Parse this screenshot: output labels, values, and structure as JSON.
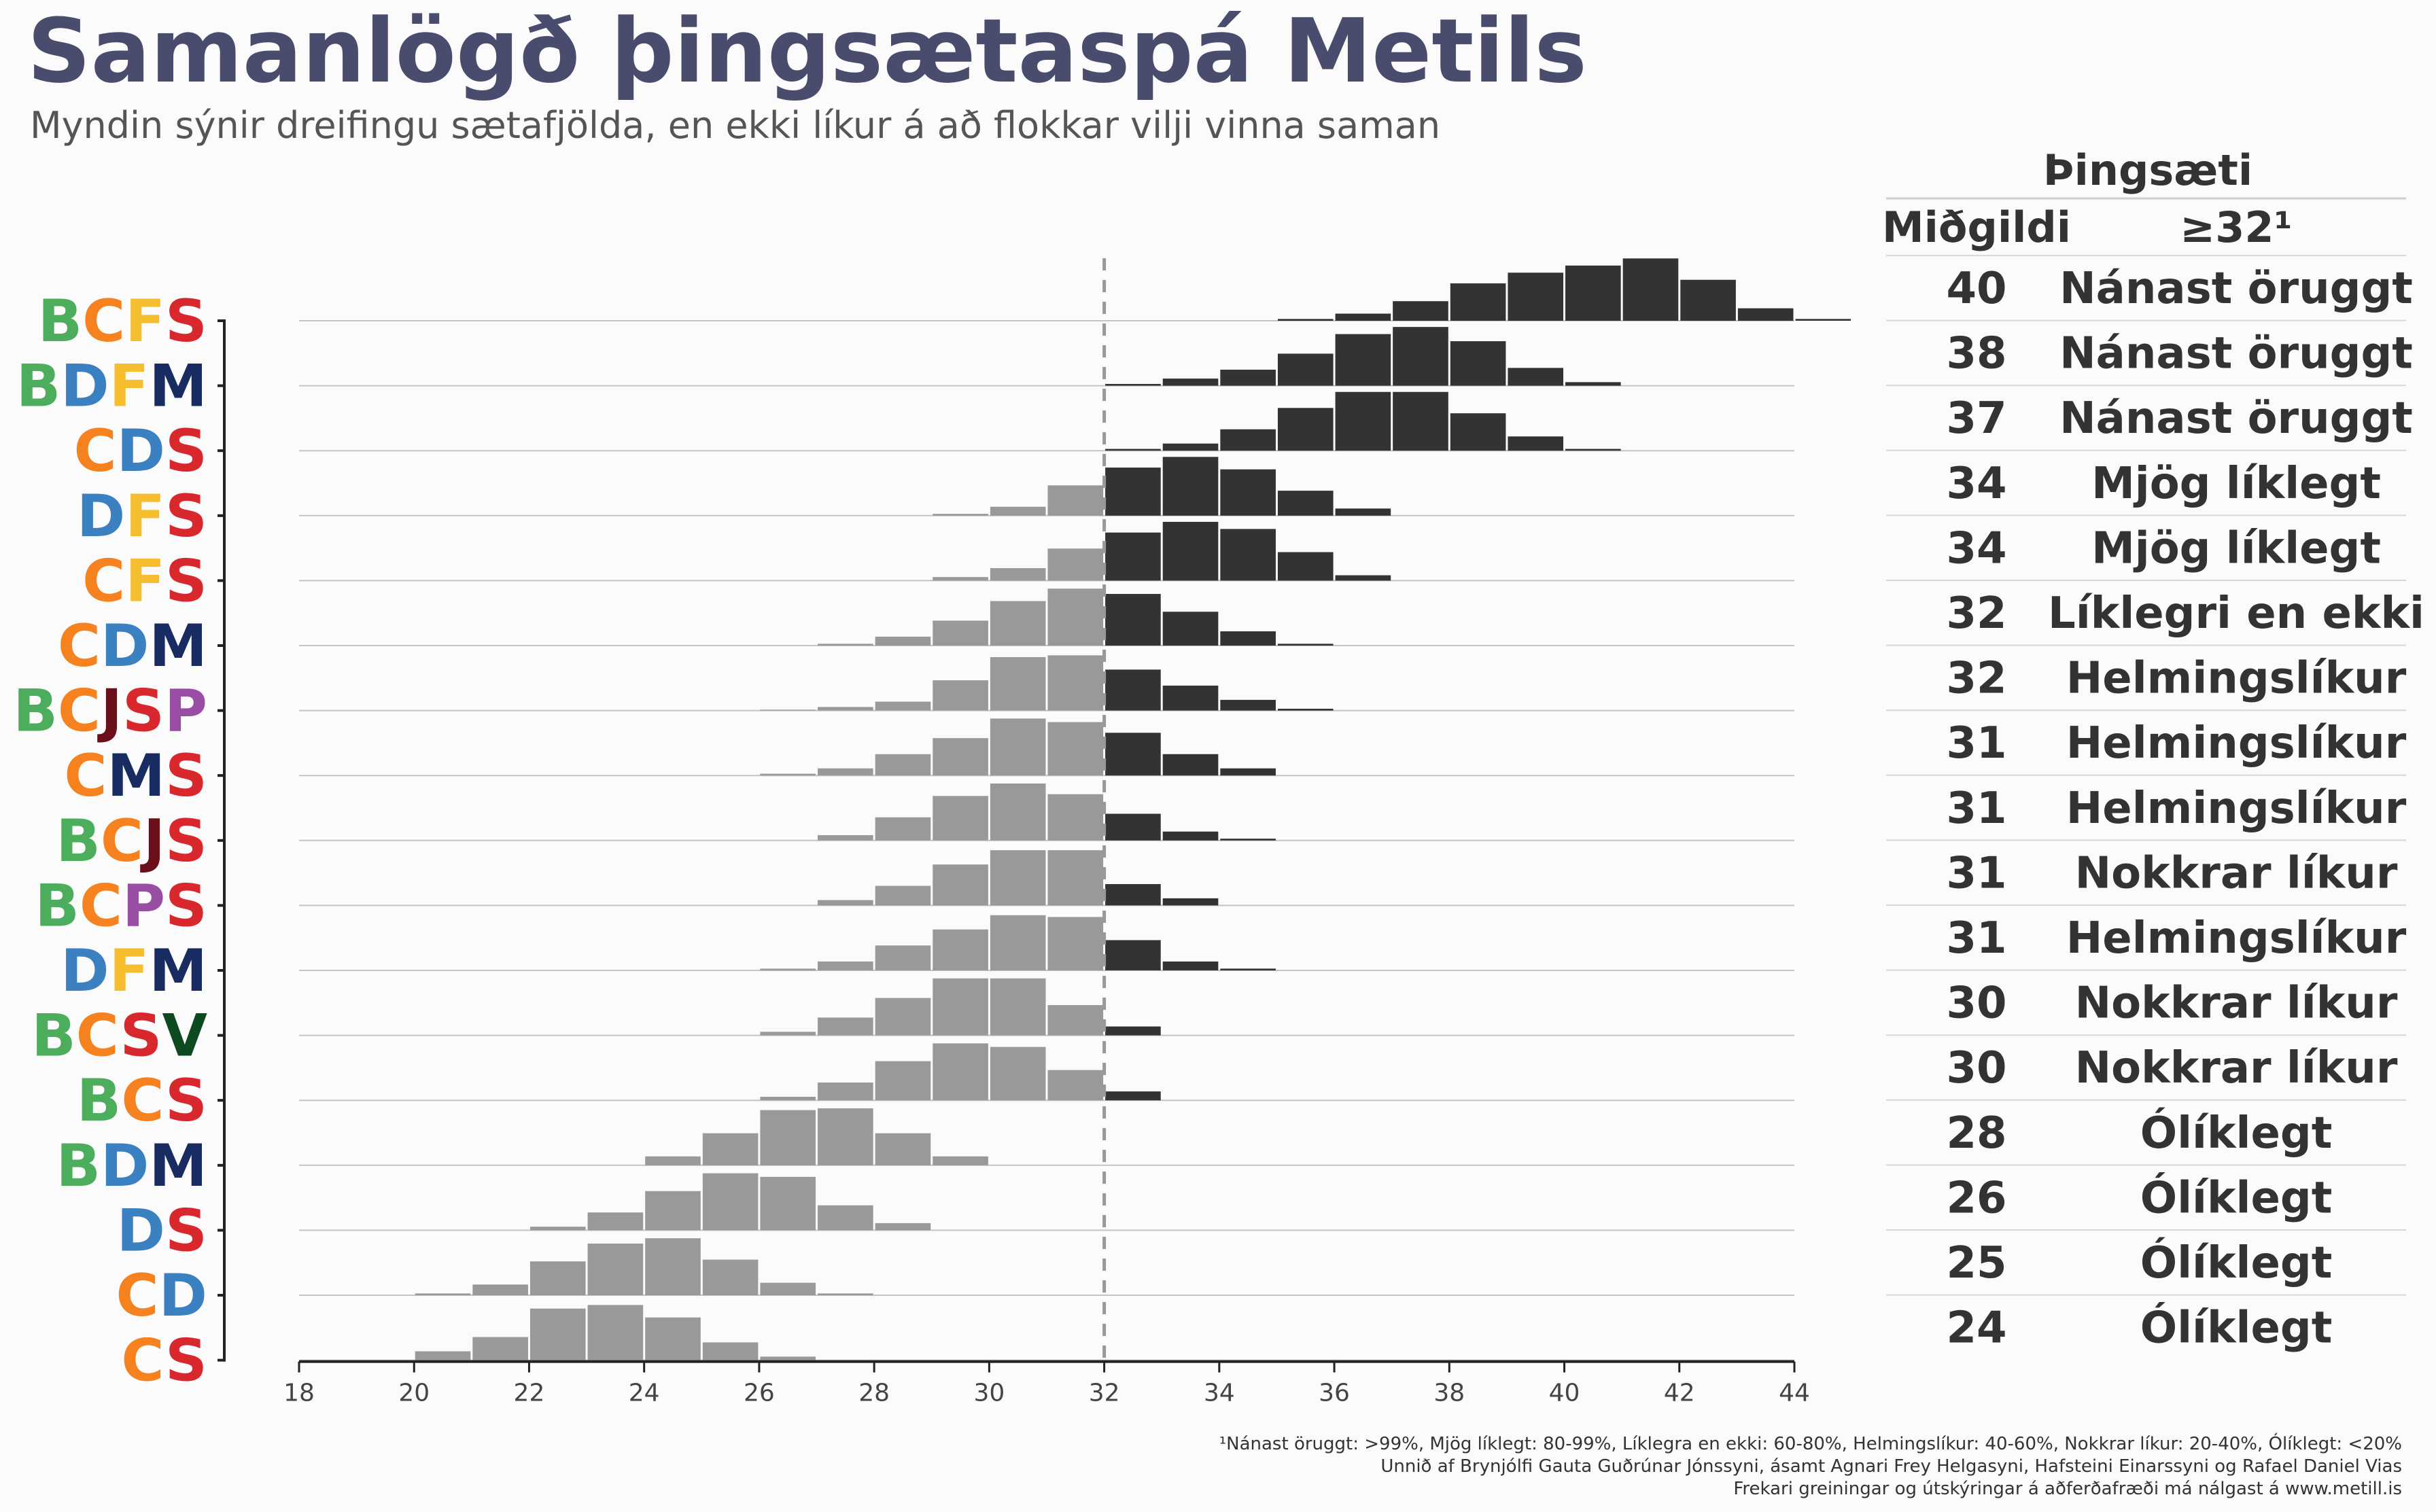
{
  "title": "Samanlögð þingsætaspá Metils",
  "subtitle": "Myndin sýnir dreifingu sætafjölda, en ekki líkur á að flokkar vilji vinna saman",
  "footnotes": [
    "¹Nánast öruggt: >99%, Mjög líklegt: 80-99%, Líklegra en ekki: 60-80%, Helmingslíkur: 40-60%, Nokkrar líkur: 20-40%, Ólíklegt: <20%",
    "Unnið af Brynjólfi Gauta Guðrúnar Jónssyni, ásamt Agnari Frey Helgasyni, Hafsteini Einarssyni og Rafael Daniel Vias",
    "Frekari greiningar og útskýringar á aðferðafræði má nálgast á www.metill.is"
  ],
  "table": {
    "group_header": "Þingsæti",
    "col_median": "Miðgildi",
    "col_prob": "≥32¹"
  },
  "party_colors": {
    "B": "#4cae5c",
    "C": "#f5821f",
    "D": "#3b80c0",
    "F": "#f6be2e",
    "J": "#6b0f1a",
    "M": "#182c62",
    "P": "#984ea3",
    "S": "#d9272e",
    "V": "#0d4a1f"
  },
  "colors": {
    "above": "#333333",
    "below": "#999999",
    "threshold_line": "#999999"
  },
  "chart_data": {
    "type": "histogram",
    "x_range": [
      18,
      44
    ],
    "x_ticks": [
      18,
      20,
      22,
      24,
      26,
      28,
      30,
      32,
      34,
      36,
      38,
      40,
      42,
      44
    ],
    "threshold": 32,
    "bin_width": 1,
    "series": [
      {
        "name": "BCFS",
        "median": 40,
        "prob_label": "Nánast öruggt",
        "bins_start": 35,
        "densities": [
          0.01,
          0.04,
          0.11,
          0.21,
          0.27,
          0.31,
          0.35,
          0.23,
          0.07,
          0.01
        ]
      },
      {
        "name": "BDFM",
        "median": 38,
        "prob_label": "Nánast öruggt",
        "bins_start": 32,
        "densities": [
          0.01,
          0.04,
          0.09,
          0.18,
          0.29,
          0.33,
          0.25,
          0.1,
          0.02
        ]
      },
      {
        "name": "CDS",
        "median": 37,
        "prob_label": "Nánast öruggt",
        "bins_start": 32,
        "densities": [
          0.01,
          0.04,
          0.12,
          0.24,
          0.33,
          0.33,
          0.21,
          0.08,
          0.01
        ]
      },
      {
        "name": "DFS",
        "median": 34,
        "prob_label": "Mjög líklegt",
        "bins_start": 29,
        "densities": [
          0.01,
          0.05,
          0.17,
          0.27,
          0.33,
          0.26,
          0.14,
          0.04
        ]
      },
      {
        "name": "CFS",
        "median": 34,
        "prob_label": "Mjög líklegt",
        "bins_start": 29,
        "densities": [
          0.02,
          0.07,
          0.18,
          0.27,
          0.33,
          0.29,
          0.16,
          0.03
        ]
      },
      {
        "name": "CDM",
        "median": 32,
        "prob_label": "Líklegri en ekki",
        "bins_start": 27,
        "densities": [
          0.01,
          0.05,
          0.14,
          0.25,
          0.32,
          0.29,
          0.19,
          0.08,
          0.01
        ]
      },
      {
        "name": "BCJSP",
        "median": 32,
        "prob_label": "Helmingslíkur",
        "bins_start": 26,
        "densities": [
          0.005,
          0.02,
          0.05,
          0.17,
          0.3,
          0.31,
          0.23,
          0.14,
          0.06,
          0.01
        ]
      },
      {
        "name": "CMS",
        "median": 31,
        "prob_label": "Helmingslíkur",
        "bins_start": 26,
        "densities": [
          0.01,
          0.04,
          0.12,
          0.21,
          0.32,
          0.3,
          0.24,
          0.12,
          0.04
        ]
      },
      {
        "name": "BCJS",
        "median": 31,
        "prob_label": "Helmingslíkur",
        "bins_start": 27,
        "densities": [
          0.03,
          0.13,
          0.25,
          0.32,
          0.26,
          0.15,
          0.05,
          0.01
        ]
      },
      {
        "name": "BCPS",
        "median": 31,
        "prob_label": "Nokkrar líkur",
        "bins_start": 27,
        "densities": [
          0.03,
          0.11,
          0.23,
          0.31,
          0.31,
          0.12,
          0.04
        ]
      },
      {
        "name": "DFM",
        "median": 31,
        "prob_label": "Helmingslíkur",
        "bins_start": 26,
        "densities": [
          0.01,
          0.05,
          0.14,
          0.23,
          0.31,
          0.3,
          0.17,
          0.05,
          0.01
        ]
      },
      {
        "name": "BCSV",
        "median": 30,
        "prob_label": "Nokkrar líkur",
        "bins_start": 26,
        "densities": [
          0.02,
          0.1,
          0.21,
          0.32,
          0.32,
          0.17,
          0.05
        ]
      },
      {
        "name": "BCS",
        "median": 30,
        "prob_label": "Nokkrar líkur",
        "bins_start": 26,
        "densities": [
          0.02,
          0.1,
          0.22,
          0.32,
          0.3,
          0.17,
          0.05
        ]
      },
      {
        "name": "BDM",
        "median": 28,
        "prob_label": "Ólíklegt",
        "bins_start": 24,
        "densities": [
          0.05,
          0.18,
          0.31,
          0.32,
          0.18,
          0.05
        ]
      },
      {
        "name": "DS",
        "median": 26,
        "prob_label": "Ólíklegt",
        "bins_start": 22,
        "densities": [
          0.02,
          0.1,
          0.22,
          0.32,
          0.3,
          0.14,
          0.04
        ]
      },
      {
        "name": "CD",
        "median": 25,
        "prob_label": "Ólíklegt",
        "bins_start": 20,
        "densities": [
          0.01,
          0.06,
          0.19,
          0.29,
          0.32,
          0.2,
          0.07,
          0.01
        ]
      },
      {
        "name": "CS",
        "median": 24,
        "prob_label": "Ólíklegt",
        "bins_start": 20,
        "densities": [
          0.05,
          0.13,
          0.29,
          0.31,
          0.24,
          0.1,
          0.02
        ]
      }
    ]
  }
}
